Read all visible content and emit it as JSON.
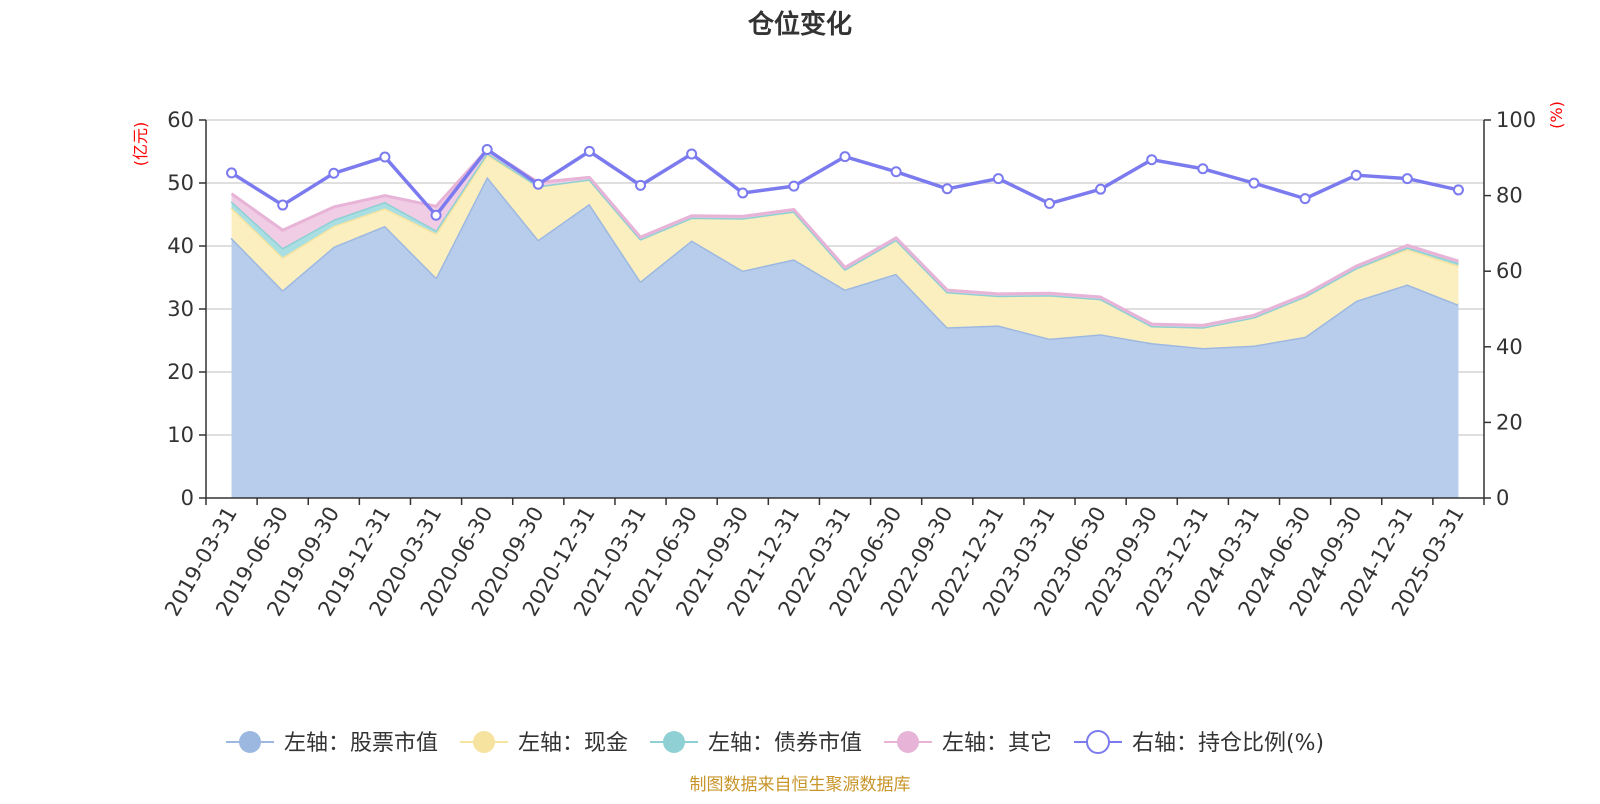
{
  "chart_data": {
    "type": "area",
    "title": "仓位变化",
    "source_note": "制图数据来自恒生聚源数据库",
    "left_axis": {
      "unit": "(亿元)",
      "ylim": [
        0,
        60
      ],
      "ticks": [
        0,
        10,
        20,
        30,
        40,
        50,
        60
      ]
    },
    "right_axis": {
      "unit": "(%)",
      "ylim": [
        0,
        100
      ],
      "ticks": [
        0,
        20,
        40,
        60,
        80,
        100
      ]
    },
    "grid": true,
    "legend_position": "bottom",
    "categories": [
      "2019-03-31",
      "2019-06-30",
      "2019-09-30",
      "2019-12-31",
      "2020-03-31",
      "2020-06-30",
      "2020-09-30",
      "2020-12-31",
      "2021-03-31",
      "2021-06-30",
      "2021-09-30",
      "2021-12-31",
      "2022-03-31",
      "2022-06-30",
      "2022-09-30",
      "2022-12-31",
      "2023-03-31",
      "2023-06-30",
      "2023-09-30",
      "2023-12-31",
      "2024-03-31",
      "2024-06-30",
      "2024-09-30",
      "2024-12-31",
      "2025-03-31"
    ],
    "series": [
      {
        "name": "左轴：股票市值",
        "axis": "left",
        "kind": "stacked-area",
        "color": "#9db8e0",
        "fill": "#b8cdeb",
        "values": [
          41.3,
          33.0,
          39.9,
          43.2,
          35.0,
          51.0,
          41.0,
          46.7,
          34.4,
          40.9,
          36.1,
          37.9,
          33.1,
          35.6,
          27.1,
          27.4,
          25.3,
          26.0,
          24.6,
          23.8,
          24.2,
          25.6,
          31.3,
          33.9,
          30.7
        ]
      },
      {
        "name": "左轴：现金",
        "axis": "left",
        "kind": "stacked-area",
        "color": "#f7e3a0",
        "fill": "#fbefc0",
        "values": [
          4.8,
          5.2,
          3.3,
          2.8,
          7.0,
          3.5,
          8.5,
          3.9,
          6.7,
          3.6,
          8.3,
          7.6,
          3.2,
          5.4,
          5.6,
          4.7,
          6.9,
          5.6,
          2.7,
          3.3,
          4.5,
          6.4,
          5.2,
          5.6,
          6.2
        ]
      },
      {
        "name": "左轴：债券市值",
        "axis": "left",
        "kind": "stacked-area",
        "color": "#8fd0d4",
        "fill": "#a9dfe2",
        "values": [
          1.0,
          1.5,
          1.0,
          1.0,
          0.5,
          0.3,
          0,
          0,
          0,
          0,
          0,
          0,
          0,
          0,
          0,
          0,
          0,
          0,
          0,
          0,
          0,
          0,
          0,
          0.3,
          0.4
        ]
      },
      {
        "name": "左轴：其它",
        "axis": "left",
        "kind": "stacked-area",
        "color": "#e7b3d7",
        "fill": "#f0cce5",
        "values": [
          1.2,
          2.8,
          2.0,
          1.0,
          3.8,
          0.5,
          0.6,
          0.3,
          0.3,
          0.3,
          0.3,
          0.3,
          0.3,
          0.3,
          0.3,
          0.3,
          0.3,
          0.3,
          0.3,
          0.3,
          0.3,
          0.3,
          0.3,
          0.3,
          0.3
        ]
      },
      {
        "name": "右轴：持仓比例(%)",
        "axis": "right",
        "kind": "line",
        "color": "#7b7bef",
        "values": [
          86.0,
          77.5,
          85.9,
          90.2,
          74.8,
          92.2,
          83.0,
          91.7,
          82.7,
          91.0,
          80.7,
          82.5,
          90.3,
          86.3,
          81.8,
          84.5,
          77.9,
          81.7,
          89.5,
          87.1,
          83.3,
          79.2,
          85.4,
          84.5,
          81.5
        ]
      }
    ]
  }
}
